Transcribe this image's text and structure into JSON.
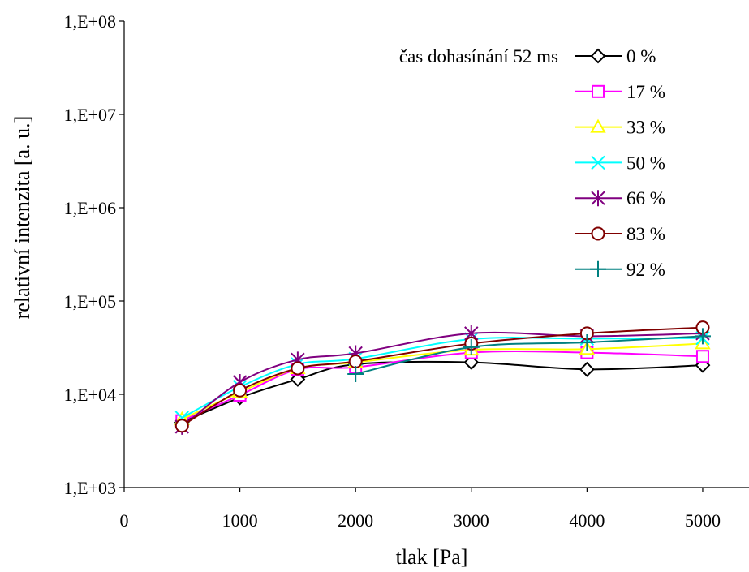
{
  "chart_data": {
    "type": "line",
    "title": "",
    "xlabel": "tlak [Pa]",
    "ylabel": "relativní intenzita [a. u.]",
    "x_scale": "linear",
    "y_scale": "log",
    "xlim": [
      0,
      5400
    ],
    "ylim": [
      1000,
      100000000
    ],
    "x_ticks": [
      0,
      1000,
      2000,
      3000,
      4000,
      5000
    ],
    "x_tick_labels": [
      "0",
      "1000",
      "2000",
      "3000",
      "4000",
      "5000"
    ],
    "y_ticks": [
      1000,
      10000,
      100000,
      1000000,
      10000000,
      100000000
    ],
    "y_tick_labels": [
      "1,E+03",
      "1,E+04",
      "1,E+05",
      "1,E+06",
      "1,E+07",
      "1,E+08"
    ],
    "grid": false,
    "legend_title": "čas dohasínání 52 ms",
    "legend_position": "top-right",
    "x": [
      500,
      1000,
      1500,
      2000,
      3000,
      4000,
      5000
    ],
    "series": [
      {
        "name": "0 %",
        "color": "#000000",
        "marker": "diamond",
        "values": [
          5000,
          9200,
          14500,
          21000,
          22000,
          18500,
          20500
        ]
      },
      {
        "name": "17 %",
        "color": "#ff00ff",
        "marker": "square",
        "values": [
          5200,
          9800,
          18500,
          19500,
          28000,
          28000,
          25500
        ]
      },
      {
        "name": "33 %",
        "color": "#ffff00",
        "marker": "triangle",
        "values": [
          5400,
          10500,
          19000,
          22000,
          30000,
          30500,
          35000
        ]
      },
      {
        "name": "50 %",
        "color": "#00ffff",
        "marker": "x",
        "values": [
          5600,
          12000,
          21000,
          24000,
          39000,
          39500,
          40000
        ]
      },
      {
        "name": "66 %",
        "color": "#800080",
        "marker": "star",
        "values": [
          4500,
          13500,
          23500,
          27500,
          45000,
          42000,
          45000
        ]
      },
      {
        "name": "83 %",
        "color": "#800000",
        "marker": "circle",
        "values": [
          4600,
          11000,
          19000,
          22500,
          35000,
          45000,
          52000
        ]
      },
      {
        "name": "92 %",
        "color": "#008080",
        "marker": "plus",
        "values": [
          null,
          null,
          null,
          16500,
          32000,
          36000,
          42000
        ]
      }
    ]
  }
}
